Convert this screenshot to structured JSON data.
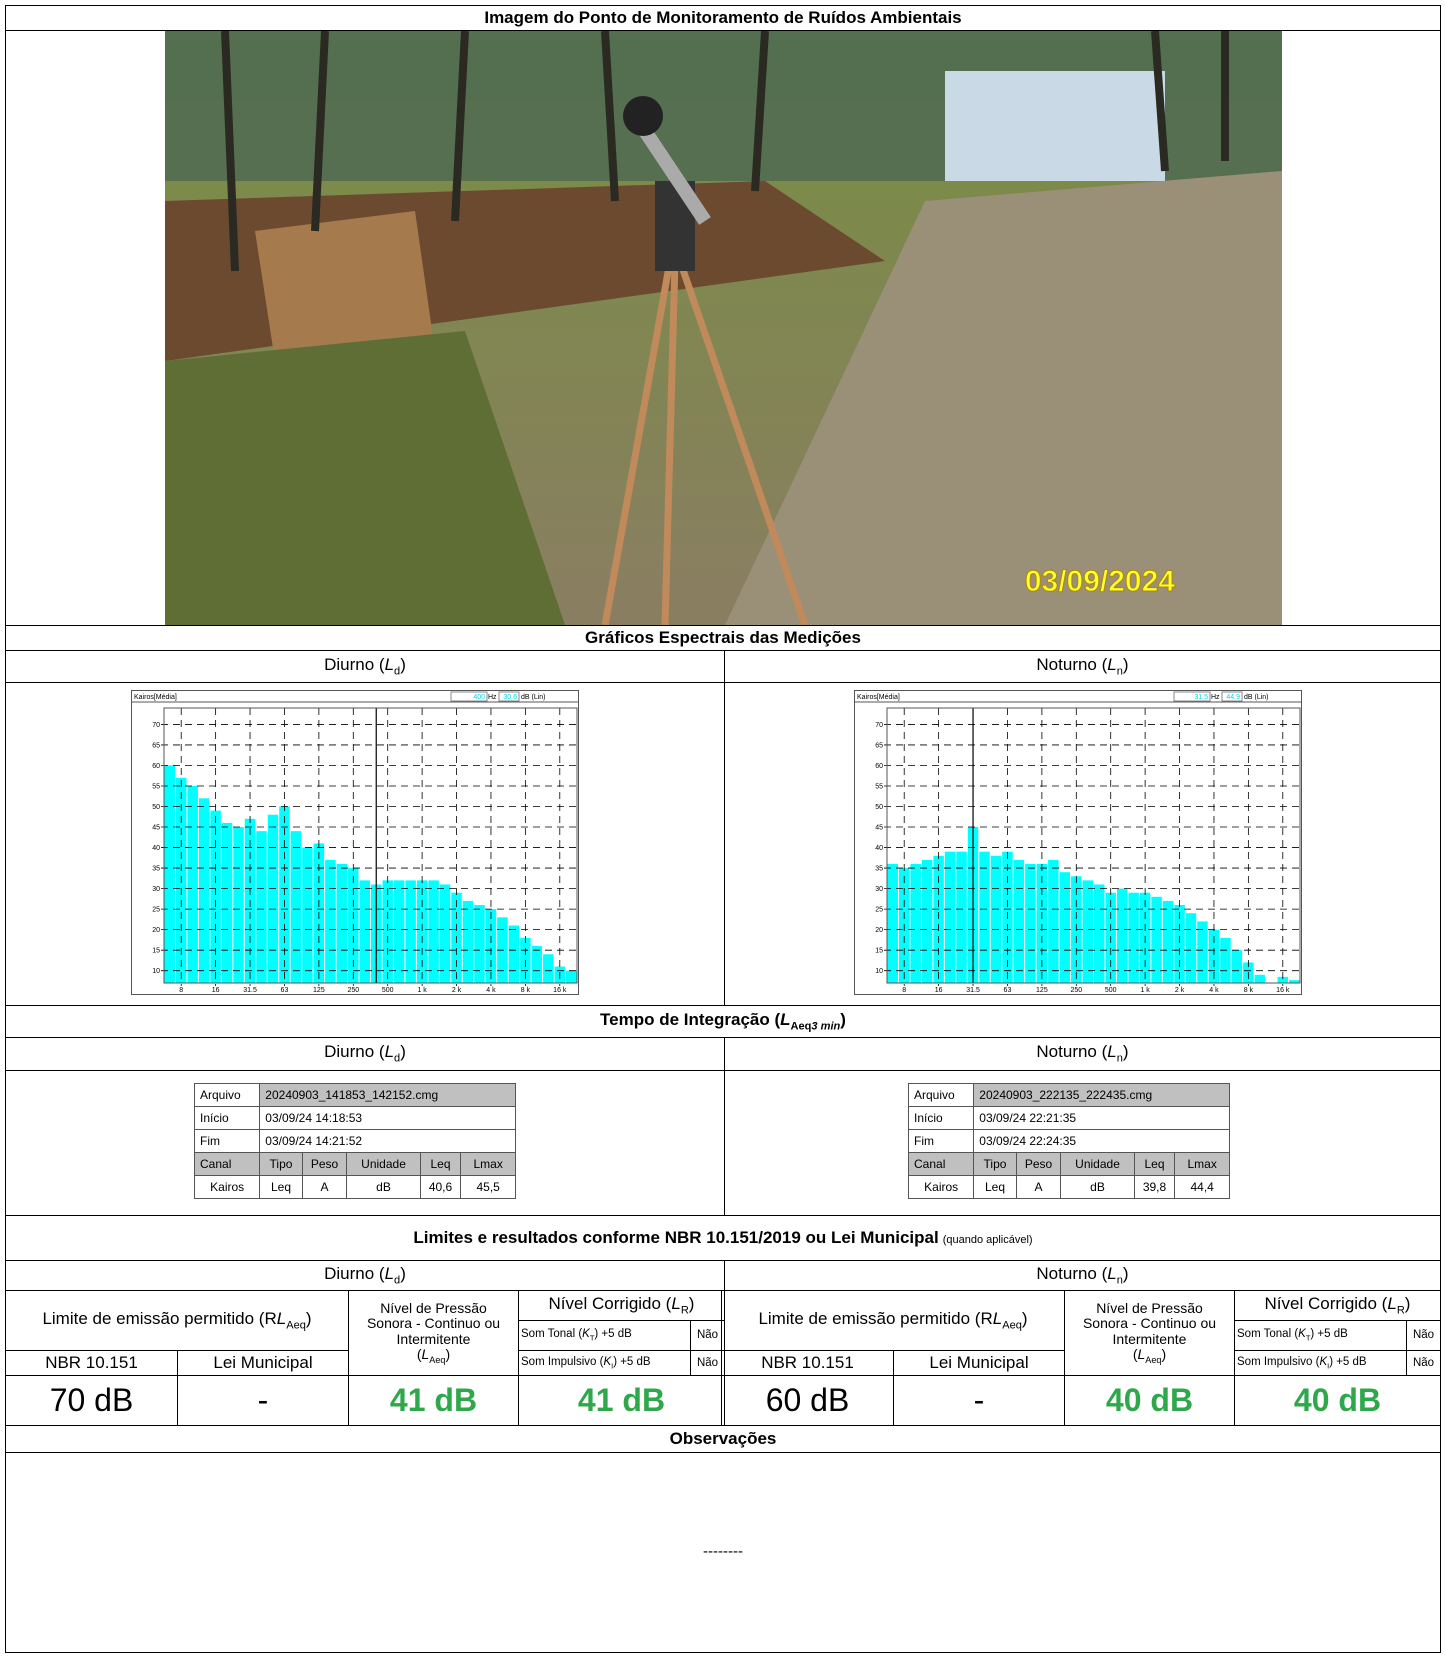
{
  "header": {
    "title": "Imagem do Ponto de Monitoramento de Ruídos Ambientais"
  },
  "photo": {
    "date": "03/09/2024"
  },
  "periods": [
    {
      "name": "Diurno (",
      "symbol": "L",
      "sub": "d",
      "close": ")"
    },
    {
      "name": "Noturno (",
      "symbol": "L",
      "sub": "n",
      "close": ")"
    }
  ],
  "spectra_title": "Gráficos Espectrais das Medições",
  "chart_data": [
    {
      "type": "bar",
      "source": "Kairos[Média]",
      "cursor_freq": "400",
      "freq_unit": "Hz",
      "cursor_level": "30.6",
      "level_unit": "dB (Lin)",
      "categories": [
        null,
        "8",
        null,
        null,
        "16",
        null,
        null,
        "31.5",
        null,
        null,
        "63",
        null,
        null,
        "125",
        null,
        null,
        "250",
        null,
        null,
        "500",
        null,
        null,
        "1 k",
        null,
        null,
        "2 k",
        null,
        null,
        "4 k",
        null,
        null,
        "8 k",
        null,
        null,
        "16 k",
        null
      ],
      "values": [
        60,
        57,
        55,
        52,
        49,
        46,
        45,
        47,
        44,
        48,
        50,
        44,
        40,
        41,
        37,
        36,
        35,
        32,
        31,
        32,
        32,
        32,
        32,
        32,
        31,
        29,
        27,
        26,
        25,
        23,
        21,
        18,
        16,
        14,
        11,
        10
      ],
      "color": "#00ffff",
      "ylim": [
        7,
        74
      ],
      "yticks": [
        10,
        15,
        20,
        25,
        30,
        35,
        40,
        45,
        50,
        55,
        60,
        65,
        70
      ],
      "grid": true
    },
    {
      "type": "bar",
      "source": "Kairos[Média]",
      "cursor_freq": "31.5",
      "freq_unit": "Hz",
      "cursor_level": "44.9",
      "level_unit": "dB (Lin)",
      "categories": [
        null,
        "8",
        null,
        null,
        "16",
        null,
        null,
        "31.5",
        null,
        null,
        "63",
        null,
        null,
        "125",
        null,
        null,
        "250",
        null,
        null,
        "500",
        null,
        null,
        "1 k",
        null,
        null,
        "2 k",
        null,
        null,
        "4 k",
        null,
        null,
        "8 k",
        null,
        null,
        "16 k",
        null
      ],
      "values": [
        36,
        35,
        36,
        37,
        38,
        39,
        39,
        45,
        39,
        38,
        39,
        37,
        36,
        36,
        37,
        34,
        33,
        32,
        31,
        29,
        30,
        29,
        29,
        28,
        27,
        26,
        24,
        22,
        20,
        18,
        15,
        12,
        9,
        7,
        8.5,
        7.7
      ],
      "color": "#00ffff",
      "ylim": [
        7,
        74
      ],
      "yticks": [
        10,
        15,
        20,
        25,
        30,
        35,
        40,
        45,
        50,
        55,
        60,
        65,
        70
      ],
      "grid": true
    }
  ],
  "integration": {
    "title": {
      "text": "Tempo de Integração (",
      "symbol": "L",
      "sub": "Aeq",
      "sub2": "3 min",
      "close": ")"
    },
    "tables": [
      {
        "rows": [
          [
            "Arquivo",
            "20240903_141853_142152.cmg"
          ],
          [
            "Início",
            "03/09/24 14:18:53"
          ],
          [
            "Fim",
            "03/09/24 14:21:52"
          ]
        ],
        "columns": [
          "Canal",
          "Tipo",
          "Peso",
          "Unidade",
          "Leq",
          "Lmax"
        ],
        "values": [
          "Kairos",
          "Leq",
          "A",
          "dB",
          "40,6",
          "45,5"
        ]
      },
      {
        "rows": [
          [
            "Arquivo",
            "20240903_222135_222435.cmg"
          ],
          [
            "Início",
            "03/09/24 22:21:35"
          ],
          [
            "Fim",
            "03/09/24 22:24:35"
          ]
        ],
        "columns": [
          "Canal",
          "Tipo",
          "Peso",
          "Unidade",
          "Leq",
          "Lmax"
        ],
        "values": [
          "Kairos",
          "Leq",
          "A",
          "dB",
          "39,8",
          "44,4"
        ]
      }
    ]
  },
  "limits": {
    "title": "Limites e resultados conforme NBR 10.151/2019 ou Lei Municipal",
    "note": "(quando aplicável)",
    "results": [
      {
        "limit_label": {
          "text": "Limite de emissão permitido (R",
          "symbol": "L",
          "sub": "Aeq",
          "close": ")"
        },
        "level_label": {
          "text": "Nível de Pressão Sonora - Continuo ou Intermitente",
          "open": "(",
          "symbol": "L",
          "sub": "Aeq",
          "close": ")"
        },
        "corrected_label": {
          "text": "Nível Corrigido (",
          "symbol": "L",
          "sub": "R",
          "close": ")"
        },
        "tonal": {
          "text": "Som Tonal (",
          "symbol": "K",
          "sub": "T",
          "close": ") +5 dB",
          "answer": "Não"
        },
        "impulsive": {
          "text": "Som Impulsivo (",
          "symbol": "K",
          "sub": "I",
          "close": ") +5 dB",
          "answer": "Não"
        },
        "nbr_label": "NBR 10.151",
        "municipal_label": "Lei Municipal",
        "nbr_limit": "70 dB",
        "municipal_limit": "-",
        "level": "41 dB",
        "corrected": "41 dB"
      },
      {
        "limit_label": {
          "text": "Limite de emissão permitido (R",
          "symbol": "L",
          "sub": "Aeq",
          "close": ")"
        },
        "level_label": {
          "text": "Nível de Pressão Sonora - Continuo ou Intermitente",
          "open": "(",
          "symbol": "L",
          "sub": "Aeq",
          "close": ")"
        },
        "corrected_label": {
          "text": "Nível Corrigido (",
          "symbol": "L",
          "sub": "R",
          "close": ")"
        },
        "tonal": {
          "text": "Som Tonal (",
          "symbol": "K",
          "sub": "T",
          "close": ") +5 dB",
          "answer": "Não"
        },
        "impulsive": {
          "text": "Som Impulsivo (",
          "symbol": "K",
          "sub": "I",
          "close": ") +5 dB",
          "answer": "Não"
        },
        "nbr_label": "NBR 10.151",
        "municipal_label": "Lei Municipal",
        "nbr_limit": "60 dB",
        "municipal_limit": "-",
        "level": "40 dB",
        "corrected": "40 dB"
      }
    ]
  },
  "observations": {
    "title": "Observações",
    "text": "--------"
  }
}
